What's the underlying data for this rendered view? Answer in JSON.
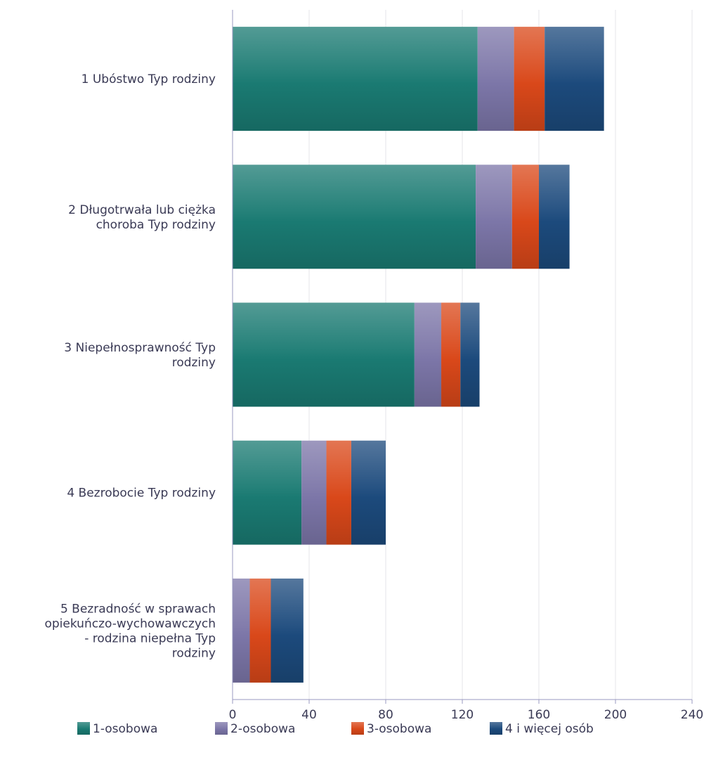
{
  "chart_data": {
    "type": "bar",
    "orientation": "horizontal",
    "stacked": true,
    "categories": [
      [
        "1 Ubóstwo Typ rodziny"
      ],
      [
        "2 Długotrwała lub ciężka",
        "choroba Typ rodziny"
      ],
      [
        "3 Niepełnosprawność Typ",
        "rodziny"
      ],
      [
        "4 Bezrobocie Typ rodziny"
      ],
      [
        "5 Bezradność w sprawach",
        "opiekuńczo-wychowawczych",
        "- rodzina niepełna Typ",
        "rodziny"
      ]
    ],
    "series": [
      {
        "name": "1-osobowa",
        "color": "#1a7a72",
        "values": [
          128,
          127,
          95,
          36,
          0
        ]
      },
      {
        "name": "2-osobowa",
        "color": "#7c76a8",
        "values": [
          19,
          19,
          14,
          13,
          9
        ]
      },
      {
        "name": "3-osobowa",
        "color": "#d9481a",
        "values": [
          16,
          14,
          10,
          13,
          11
        ]
      },
      {
        "name": "4  i więcej osób",
        "color": "#1c4a7c",
        "values": [
          31,
          16,
          10,
          18,
          17
        ]
      }
    ],
    "xlim": [
      0,
      240
    ],
    "xticks": [
      "0",
      "40",
      "80",
      "120",
      "160",
      "200",
      "240"
    ],
    "grid": true,
    "legend_position": "bottom"
  }
}
